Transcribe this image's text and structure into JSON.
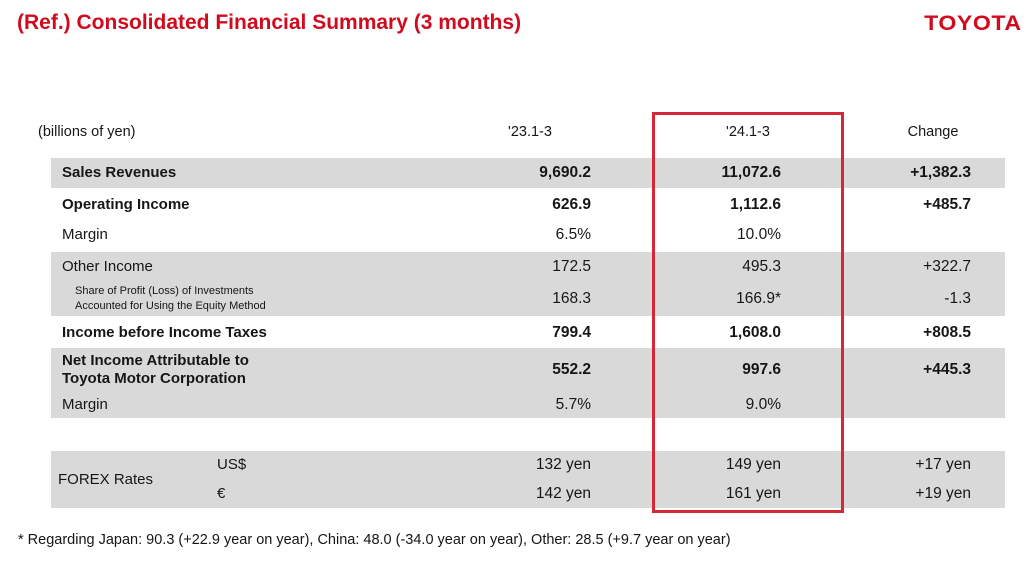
{
  "page": {
    "title": "(Ref.) Consolidated Financial Summary (3 months)",
    "logo": "TOYOTA"
  },
  "table": {
    "unit_label": "(billions of yen)",
    "col_headers": [
      "'23.1-3",
      "'24.1-3",
      "Change"
    ],
    "rows": [
      {
        "label": "Sales Revenues",
        "y23": "9,690.2",
        "y24": "11,072.6",
        "change": "+1,382.3"
      },
      {
        "label": "Operating Income",
        "y23": "626.9",
        "y24": "1,112.6",
        "change": "+485.7"
      },
      {
        "label": "Margin",
        "y23": "6.5%",
        "y24": "10.0%",
        "change": ""
      },
      {
        "label": "Other Income",
        "y23": "172.5",
        "y24": "495.3",
        "change": "+322.7"
      },
      {
        "label_line1": "Share of Profit (Loss) of Investments",
        "label_line2": "Accounted for Using the Equity Method",
        "y23": "168.3",
        "y24": "166.9*",
        "change": "-1.3"
      },
      {
        "label": "Income before Income Taxes",
        "y23": "799.4",
        "y24": "1,608.0",
        "change": "+808.5"
      },
      {
        "label_line1": "Net Income Attributable to",
        "label_line2": "Toyota Motor Corporation",
        "y23": "552.2",
        "y24": "997.6",
        "change": "+445.3"
      },
      {
        "label": "Margin",
        "y23": "5.7%",
        "y24": "9.0%",
        "change": ""
      }
    ],
    "forex": {
      "label": "FOREX Rates",
      "rows": [
        {
          "currency": "US$",
          "y23": "132 yen",
          "y24": "149 yen",
          "change": "+17 yen"
        },
        {
          "currency": "€",
          "y23": "142 yen",
          "y24": "161 yen",
          "change": "+19 yen"
        }
      ]
    }
  },
  "footnote": "* Regarding Japan: 90.3 (+22.9 year on year), China: 48.0 (-34.0 year on year), Other: 28.5 (+9.7 year on year)",
  "colors": {
    "accent_red": "#d10a1e",
    "highlight_box_red": "#d22837",
    "row_gray": "#d9d9d9"
  }
}
